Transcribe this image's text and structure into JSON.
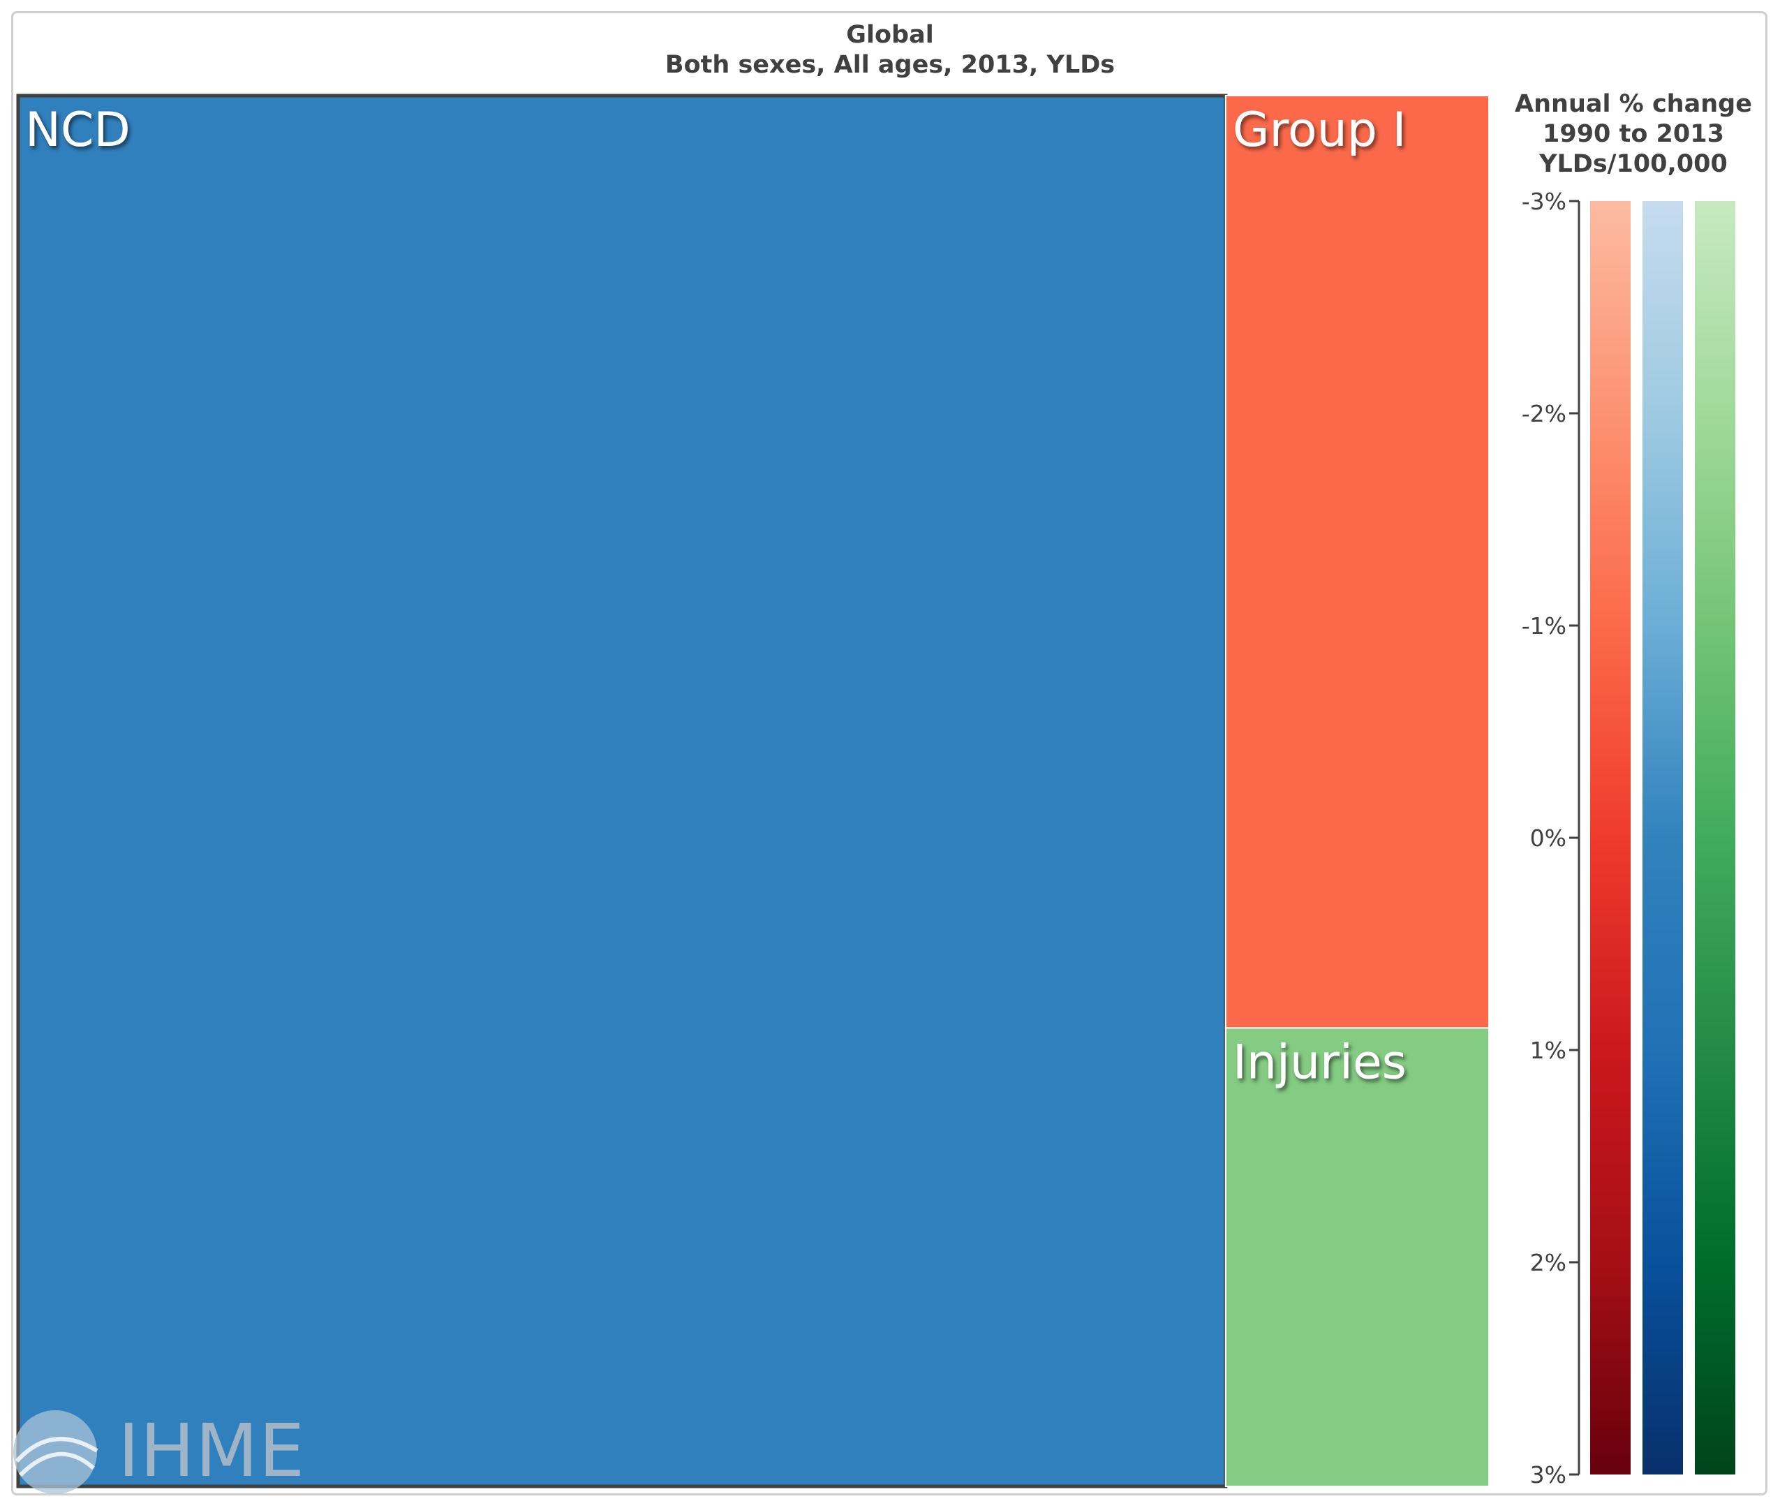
{
  "title": "Global",
  "subtitle": "Both sexes, All ages, 2013, YLDs",
  "logo_text": "IHME",
  "chart_data": {
    "type": "treemap",
    "cells": [
      {
        "label": "NCD",
        "share": 0.821,
        "color": "#3080bd",
        "selected": true
      },
      {
        "label": "Group I",
        "share": 0.12,
        "color": "#fb694a"
      },
      {
        "label": "Injuries",
        "share": 0.059,
        "color": "#84cb83"
      }
    ],
    "legend": {
      "title_lines": [
        "Annual % change",
        "1990 to 2013",
        "YLDs/100,000"
      ],
      "range": [
        -3,
        3
      ],
      "ticks": [
        "-3%",
        "-2%",
        "-1%",
        "0%",
        "1%",
        "2%",
        "3%"
      ],
      "tick_values": [
        -3,
        -2,
        -1,
        0,
        1,
        2,
        3
      ],
      "colorbars": [
        {
          "name": "reds",
          "stops": [
            "#fcbba1",
            "#fc9272",
            "#fb6a4a",
            "#ef3b2c",
            "#cb181d",
            "#a50f15",
            "#67000d"
          ]
        },
        {
          "name": "blues",
          "stops": [
            "#c6dbef",
            "#9ecae1",
            "#6baed6",
            "#3182bd",
            "#2171b5",
            "#08519c",
            "#08306b"
          ]
        },
        {
          "name": "greens",
          "stops": [
            "#c7e9c0",
            "#a1d99b",
            "#74c476",
            "#41ab5d",
            "#238b45",
            "#006d2c",
            "#00441b"
          ]
        }
      ]
    }
  }
}
